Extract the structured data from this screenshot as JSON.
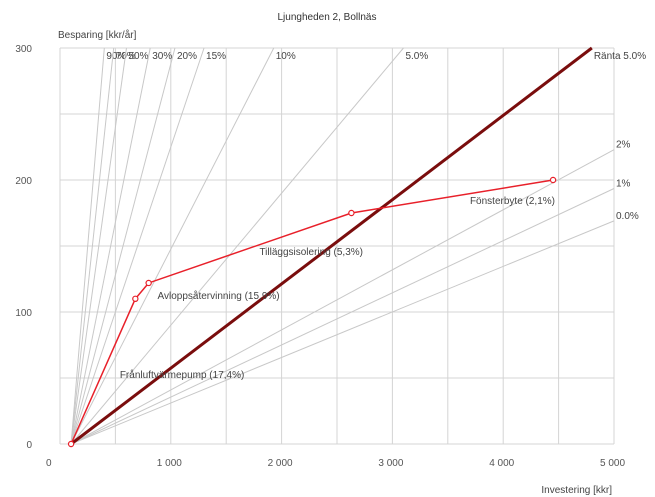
{
  "chart_data": {
    "type": "line",
    "title": "Ljungheden 2, Bollnäs",
    "ylabel": "Besparing [kkr/år]",
    "xlabel": "Investering [kkr]",
    "xlim": [
      0,
      5000
    ],
    "ylim": [
      0,
      300
    ],
    "x_ticks": [
      0,
      1000,
      2000,
      3000,
      4000,
      5000
    ],
    "x_tick_labels": [
      "0",
      "1 000",
      "2 000",
      "3 000",
      "4 000",
      "5 000"
    ],
    "y_ticks": [
      0,
      100,
      200,
      300
    ],
    "y_tick_labels": [
      "0",
      "100",
      "200",
      "300"
    ],
    "grid": true,
    "colors": {
      "series": "#e8202a",
      "payback": "#7a0d0d",
      "guide": "#c8c8c8",
      "grid": "#d4d4d4"
    },
    "origin": [
      100,
      0
    ],
    "guide_lines": [
      {
        "label": "90%",
        "slope": 1.0
      },
      {
        "label": "70%",
        "slope": 0.78
      },
      {
        "label": "50%",
        "slope": 0.6
      },
      {
        "label": "30%",
        "slope": 0.42
      },
      {
        "label": "20%",
        "slope": 0.32
      },
      {
        "label": "15%",
        "slope": 0.25
      },
      {
        "label": "10%",
        "slope": 0.164
      },
      {
        "label": "5.0%",
        "slope": 0.1
      },
      {
        "label": "2%",
        "slope": 0.0455
      },
      {
        "label": "1%",
        "slope": 0.0395
      },
      {
        "label": "0.0%",
        "slope": 0.0345
      }
    ],
    "payback_line": {
      "label": "Ränta 5.0%",
      "points": [
        [
          100,
          0
        ],
        [
          4800,
          300
        ]
      ]
    },
    "series": [
      {
        "x": [
          100,
          680,
          800,
          2630,
          4450
        ],
        "y": [
          0,
          110,
          122,
          175,
          200
        ]
      }
    ],
    "annotations": [
      {
        "text": "Frånluftvärmepump  (17,4%)",
        "x": 540,
        "y": 50
      },
      {
        "text": "Avloppsåtervinning  (15,9%)",
        "x": 880,
        "y": 110
      },
      {
        "text": "Tilläggsisolering  (5,3%)",
        "x": 1800,
        "y": 143
      },
      {
        "text": "Fönsterbyte  (2,1%)",
        "x": 3700,
        "y": 182
      }
    ]
  }
}
